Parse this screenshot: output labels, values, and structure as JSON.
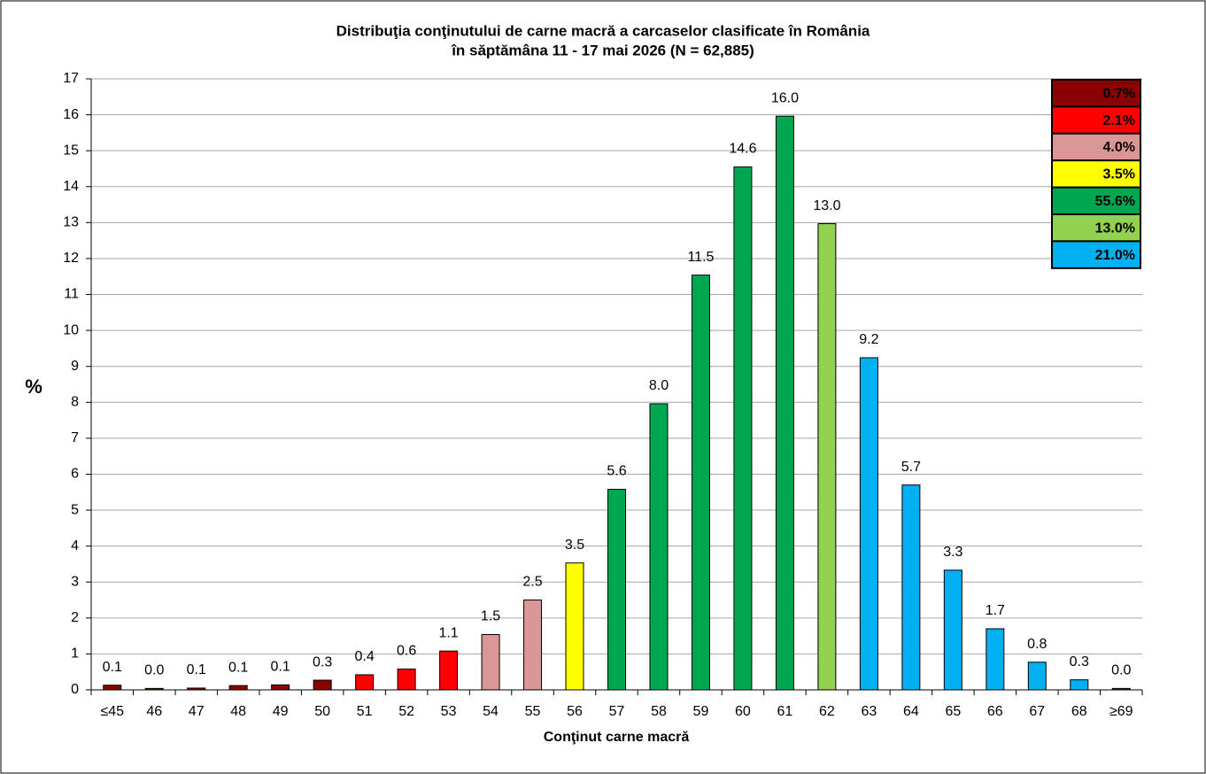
{
  "chart_data": {
    "type": "bar",
    "title": "Distribuţia conţinutului de carne macră a carcaselor clasificate în România",
    "subtitle": "în săptămâna 11 - 17 mai 2026 (N = 62,885)",
    "y_label": "%",
    "x_label": "Conţinut  carne macră",
    "categories": [
      "≤45",
      "46",
      "47",
      "48",
      "49",
      "50",
      "51",
      "52",
      "53",
      "54",
      "55",
      "56",
      "57",
      "58",
      "59",
      "60",
      "61",
      "62",
      "63",
      "64",
      "65",
      "66",
      "67",
      "68",
      "≥69"
    ],
    "values": [
      0.13,
      0.04,
      0.05,
      0.12,
      0.14,
      0.27,
      0.42,
      0.58,
      1.08,
      1.54,
      2.5,
      3.53,
      5.58,
      7.96,
      11.54,
      14.55,
      15.96,
      12.97,
      9.24,
      5.7,
      3.33,
      1.7,
      0.77,
      0.28,
      0.04
    ],
    "value_labels": [
      "0.1",
      "0.0",
      "0.1",
      "0.1",
      "0.1",
      "0.3",
      "0.4",
      "0.6",
      "1.1",
      "1.5",
      "2.5",
      "3.5",
      "5.6",
      "8.0",
      "11.5",
      "14.6",
      "16.0",
      "13.0",
      "9.2",
      "5.7",
      "3.3",
      "1.7",
      "0.8",
      "0.3",
      "0.0"
    ],
    "colors": [
      "#8b0000",
      "#8b0000",
      "#8b0000",
      "#8b0000",
      "#8b0000",
      "#8b0000",
      "#ff0000",
      "#ff0000",
      "#ff0000",
      "#d99694",
      "#d99694",
      "#ffff00",
      "#00a650",
      "#00a650",
      "#00a650",
      "#00a650",
      "#00a650",
      "#92d050",
      "#00b0f0",
      "#00b0f0",
      "#00b0f0",
      "#00b0f0",
      "#00b0f0",
      "#00b0f0",
      "#8b0000"
    ],
    "ylim": [
      0,
      17
    ],
    "yticks": [
      0,
      1,
      2,
      3,
      4,
      5,
      6,
      7,
      8,
      9,
      10,
      11,
      12,
      13,
      14,
      15,
      16,
      17
    ],
    "grid": true,
    "class_totals": {
      "values": [
        0.7,
        2.1,
        4.0,
        3.5,
        55.6,
        13.0,
        21.0
      ],
      "value_labels": [
        "0.7%",
        "2.1%",
        "4.0%",
        "3.5%",
        "55.6%",
        "13.0%",
        "21.0%"
      ],
      "colors": [
        "#8b0000",
        "#ff0000",
        "#d99694",
        "#ffff00",
        "#00a650",
        "#92d050",
        "#00b0f0"
      ]
    }
  }
}
